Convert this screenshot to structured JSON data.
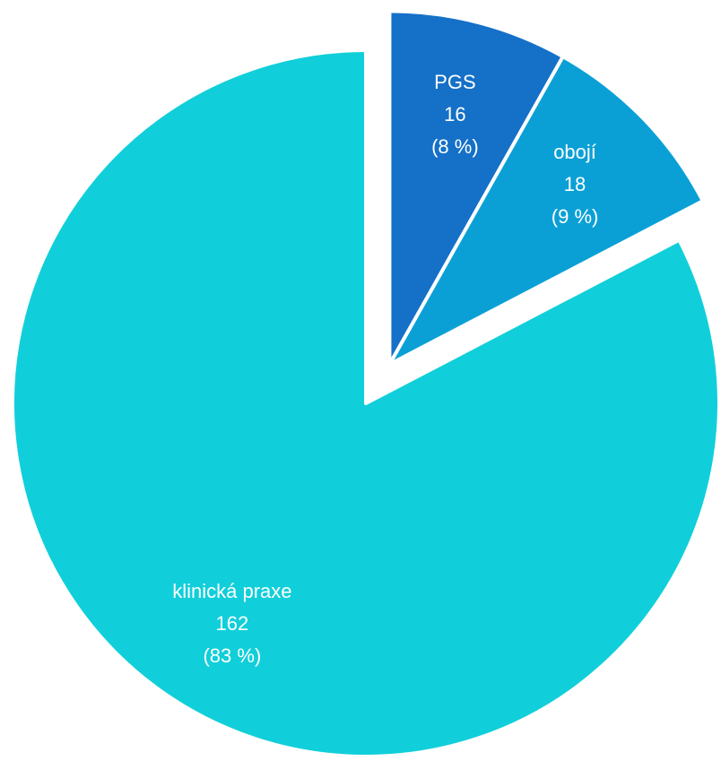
{
  "chart_data": {
    "type": "pie",
    "categories": [
      "PGS",
      "obojí",
      "klinická praxe"
    ],
    "values": [
      16,
      18,
      162
    ],
    "value_labels": [
      "(8 %)",
      "(9 %)",
      "(83 %)"
    ],
    "colors": [
      "#1570c8",
      "#0aa0d6",
      "#10cfda"
    ],
    "explode": [
      true,
      true,
      false
    ]
  }
}
